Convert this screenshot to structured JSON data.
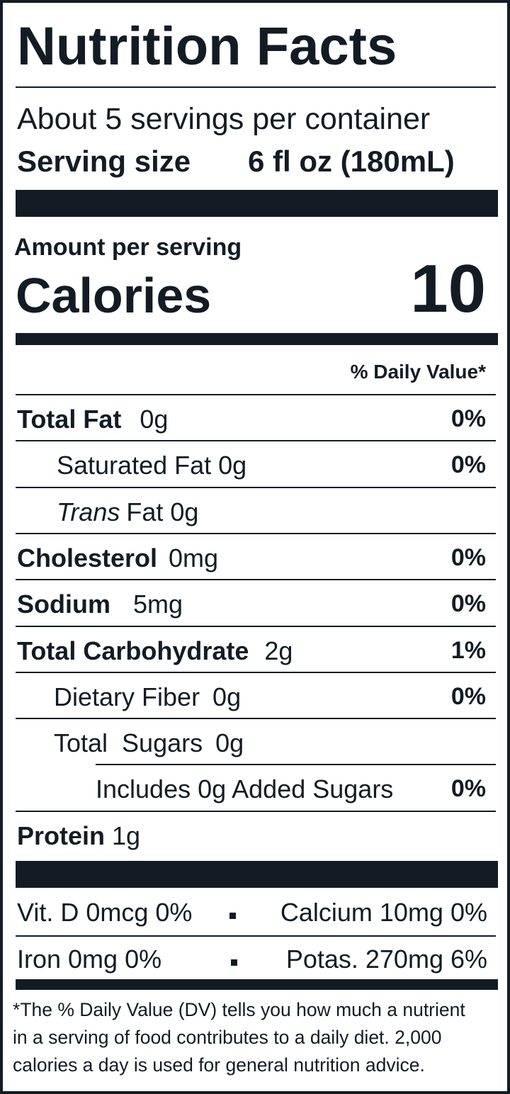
{
  "title": "Nutrition Facts",
  "servings": "About 5 servings per container",
  "serving_size": {
    "label": "Serving size",
    "value": "6 fl oz (180mL)"
  },
  "amount_per_serving": "Amount per serving",
  "calories": {
    "label": "Calories",
    "value": "10"
  },
  "dv_header": "% Daily Value*",
  "rows": [
    {
      "name": "Total Fat",
      "amount": "0g",
      "dv": "0%"
    },
    {
      "name": "Saturated Fat",
      "amount": "0g",
      "dv": "0%"
    },
    {
      "name_italic": "Trans",
      "name": "Fat",
      "amount": "0g"
    },
    {
      "name": "Cholesterol",
      "amount": "0mg",
      "dv": "0%"
    },
    {
      "name": "Sodium",
      "amount": "5mg",
      "dv": "0%"
    },
    {
      "name": "Total Carbohydrate",
      "amount": "2g",
      "dv": "1%"
    },
    {
      "name": "Dietary Fiber",
      "amount": "0g",
      "dv": "0%"
    },
    {
      "name": "Total  Sugars",
      "amount": "0g"
    },
    {
      "name": "Includes 0g Added Sugars",
      "dv": "0%"
    },
    {
      "name": "Protein",
      "amount": "1g"
    }
  ],
  "vitamins": [
    {
      "left": "Vit. D 0mcg 0%",
      "right": "Calcium 10mg 0%"
    },
    {
      "left": "Iron 0mg 0%",
      "right": "Potas. 270mg 6%"
    }
  ],
  "footnote": [
    "*The % Daily Value (DV) tells you how much a nutrient",
    "in a serving of food contributes to a daily diet. 2,000",
    "calories a day is used for general nutrition advice."
  ]
}
